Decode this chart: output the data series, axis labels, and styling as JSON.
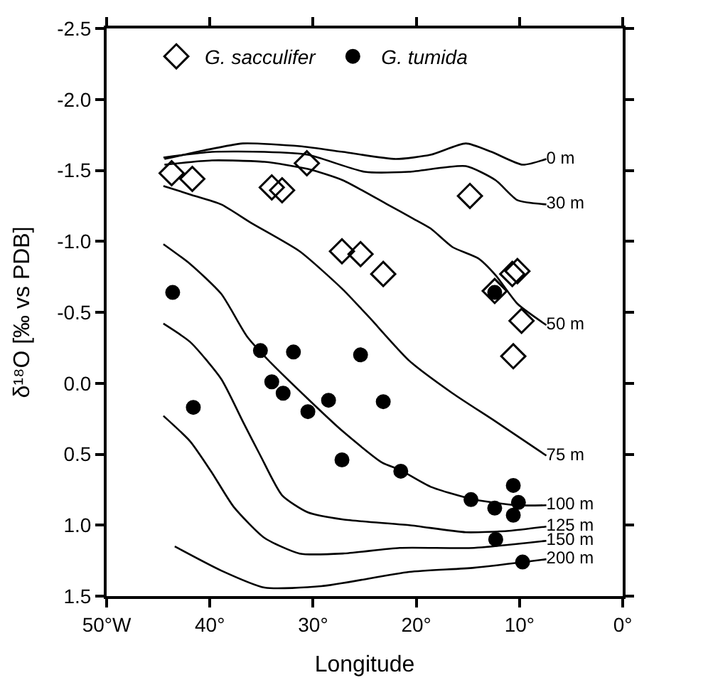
{
  "chart_data": {
    "type": "scatter",
    "xlabel": "Longitude",
    "ylabel": "δ¹⁸O [‰ vs PDB]",
    "xlim": [
      -50,
      0
    ],
    "xticks": [
      {
        "value": -50,
        "label": "50°W"
      },
      {
        "value": -40,
        "label": "40°"
      },
      {
        "value": -30,
        "label": "30°"
      },
      {
        "value": -20,
        "label": "20°"
      },
      {
        "value": -10,
        "label": "10°"
      },
      {
        "value": 0,
        "label": "0°"
      }
    ],
    "ylim": [
      1.5,
      -2.5
    ],
    "yticks": [
      {
        "value": -2.5,
        "label": "-2.5"
      },
      {
        "value": -2,
        "label": "-2.0"
      },
      {
        "value": -1.5,
        "label": "-1.5"
      },
      {
        "value": -1,
        "label": "-1.0"
      },
      {
        "value": -0.5,
        "label": "-0.5"
      },
      {
        "value": 0,
        "label": "0.0"
      },
      {
        "value": 0.5,
        "label": "0.5"
      },
      {
        "value": 1,
        "label": "1.0"
      },
      {
        "value": 1.5,
        "label": "1.5"
      }
    ],
    "legend": "top left",
    "series": [
      {
        "name": "0 m",
        "type": "line",
        "color": "#000000",
        "x": [
          -44.4,
          -40.6,
          -36.8,
          -31.3,
          -27.1,
          -22.0,
          -18.6,
          -15.2,
          -12.7,
          -9.7,
          -7.4
        ],
        "values": [
          -1.58,
          -1.64,
          -1.69,
          -1.67,
          -1.63,
          -1.58,
          -1.61,
          -1.69,
          -1.63,
          -1.54,
          -1.58
        ]
      },
      {
        "name": "30 m",
        "type": "line",
        "color": "#000000",
        "x": [
          -44.5,
          -39.8,
          -34.7,
          -30.5,
          -25.0,
          -20.7,
          -15.2,
          -12.3,
          -10.2,
          -7.4
        ],
        "values": [
          -1.59,
          -1.63,
          -1.63,
          -1.61,
          -1.49,
          -1.49,
          -1.53,
          -1.43,
          -1.29,
          -1.26
        ]
      },
      {
        "name": "50 m",
        "type": "line",
        "color": "#000000",
        "x": [
          -44.4,
          -39.8,
          -34.7,
          -30.5,
          -27.1,
          -22.8,
          -20.3,
          -18.6,
          -16.5,
          -14.0,
          -12.3,
          -10.2,
          -7.4
        ],
        "values": [
          -1.54,
          -1.57,
          -1.56,
          -1.51,
          -1.43,
          -1.26,
          -1.16,
          -1.09,
          -0.96,
          -0.88,
          -0.76,
          -0.56,
          -0.41
        ]
      },
      {
        "name": "75 m",
        "type": "line",
        "color": "#000000",
        "x": [
          -44.5,
          -41.9,
          -38.9,
          -36.0,
          -31.3,
          -27.1,
          -24.5,
          -20.7,
          -16.5,
          -12.3,
          -7.4
        ],
        "values": [
          -1.39,
          -1.33,
          -1.26,
          -1.13,
          -0.93,
          -0.66,
          -0.46,
          -0.16,
          0.07,
          0.27,
          0.51
        ]
      },
      {
        "name": "100 m",
        "type": "line",
        "color": "#000000",
        "x": [
          -44.5,
          -41.9,
          -38.9,
          -36.4,
          -34.3,
          -30.5,
          -27.1,
          -23.3,
          -21.6,
          -18.6,
          -14.4,
          -10.2,
          -7.4
        ],
        "values": [
          -0.98,
          -0.84,
          -0.63,
          -0.33,
          -0.16,
          0.11,
          0.34,
          0.56,
          0.61,
          0.73,
          0.82,
          0.86,
          0.86
        ]
      },
      {
        "name": "125 m",
        "type": "line",
        "color": "#000000",
        "x": [
          -44.5,
          -41.9,
          -38.9,
          -36.8,
          -35.1,
          -33.0,
          -30.5,
          -27.1,
          -20.7,
          -15.2,
          -11.0,
          -7.4
        ],
        "values": [
          -0.42,
          -0.29,
          -0.03,
          0.27,
          0.51,
          0.79,
          0.91,
          0.96,
          1.0,
          1.05,
          1.04,
          1.01
        ]
      },
      {
        "name": "150 m",
        "type": "line",
        "color": "#000000",
        "x": [
          -44.5,
          -41.9,
          -39.8,
          -37.7,
          -34.7,
          -31.3,
          -27.1,
          -21.6,
          -14.4,
          -7.4
        ],
        "values": [
          0.23,
          0.41,
          0.63,
          0.87,
          1.09,
          1.2,
          1.2,
          1.16,
          1.16,
          1.11
        ]
      },
      {
        "name": "200 m",
        "type": "line",
        "color": "#000000",
        "x": [
          -43.4,
          -38.9,
          -34.7,
          -29.2,
          -20.7,
          -14.4,
          -7.4
        ],
        "values": [
          1.15,
          1.32,
          1.44,
          1.43,
          1.33,
          1.3,
          1.24
        ]
      },
      {
        "name": "G. sacculifer",
        "marker": "diamond",
        "color": "#000000",
        "x": [
          -43.7,
          -41.7,
          -34.0,
          -33.0,
          -30.6,
          -14.8,
          -27.2,
          -25.4,
          -23.2,
          -12.4,
          -10.7,
          -10.2,
          -9.8,
          -10.6
        ],
        "values": [
          -1.48,
          -1.44,
          -1.38,
          -1.36,
          -1.55,
          -1.32,
          -0.93,
          -0.91,
          -0.77,
          -0.65,
          -0.77,
          -0.79,
          -0.44,
          -0.19
        ]
      },
      {
        "name": "G. tumida",
        "marker": "circle",
        "color": "#000000",
        "x": [
          -43.6,
          -35.1,
          -31.9,
          -34.0,
          -32.9,
          -30.5,
          -28.5,
          -25.4,
          -23.2,
          -41.6,
          -12.4,
          -27.2,
          -21.5,
          -14.7,
          -12.4,
          -10.6,
          -10.1,
          -10.6,
          -12.3,
          -9.7
        ],
        "values": [
          -0.64,
          -0.23,
          -0.22,
          -0.01,
          0.07,
          0.2,
          0.12,
          -0.2,
          0.13,
          0.17,
          -0.64,
          0.54,
          0.62,
          0.82,
          0.88,
          0.72,
          0.84,
          0.93,
          1.1,
          1.26
        ]
      }
    ]
  }
}
